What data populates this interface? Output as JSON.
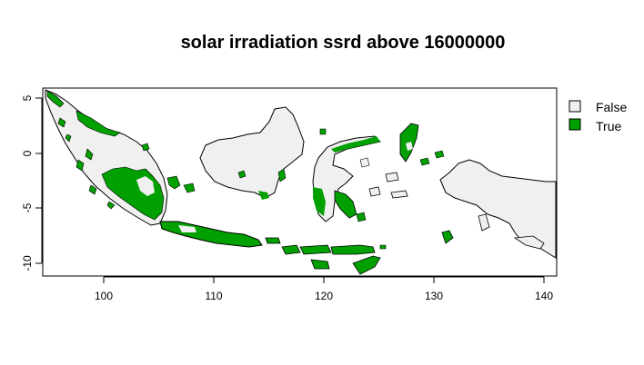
{
  "title": "solar irradiation ssrd above 16000000",
  "colors": {
    "false_fill": "#f0f0f0",
    "true_fill": "#00a000",
    "outline": "#000000",
    "background": "#ffffff"
  },
  "legend": [
    {
      "label": "False",
      "color": "#f0f0f0"
    },
    {
      "label": "True",
      "color": "#00a000"
    }
  ],
  "axes": {
    "x": {
      "ticks": [
        "100",
        "110",
        "120",
        "130",
        "140"
      ]
    },
    "y": {
      "ticks": [
        "5",
        "0",
        "-5",
        "-10"
      ]
    }
  }
}
